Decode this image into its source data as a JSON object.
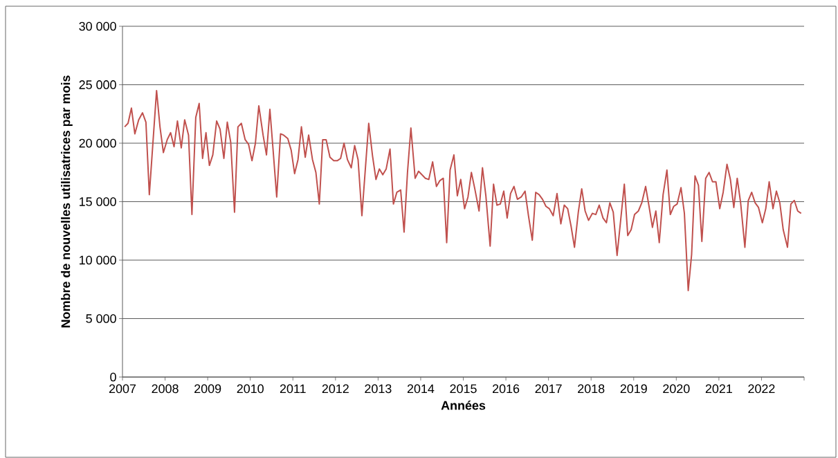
{
  "chart_data": {
    "type": "line",
    "xlabel": "Années",
    "ylabel": "Nombre de nouvelles utilisatrices par mois",
    "xlim": [
      2007,
      2023
    ],
    "ylim": [
      0,
      30000
    ],
    "xticks": [
      2007,
      2008,
      2009,
      2010,
      2011,
      2012,
      2013,
      2014,
      2015,
      2016,
      2017,
      2018,
      2019,
      2020,
      2021,
      2022,
      {
        "value": 2023,
        "label": null
      }
    ],
    "yticks": [
      {
        "value": 0,
        "label": "0"
      },
      {
        "value": 5000,
        "label": "5 000"
      },
      {
        "value": 10000,
        "label": "10 000"
      },
      {
        "value": 15000,
        "label": "15 000"
      },
      {
        "value": 20000,
        "label": "20 000"
      },
      {
        "value": 25000,
        "label": "25 000"
      },
      {
        "value": 30000,
        "label": "30 000"
      }
    ],
    "grid": "y",
    "legend": false,
    "marker": "none",
    "line_style": "solid",
    "series": [
      {
        "color": "#c0504d",
        "x": [
          2007.05,
          2007.13,
          2007.21,
          2007.29,
          2007.38,
          2007.47,
          2007.55,
          2007.63,
          2007.8,
          2007.88,
          2007.96,
          2008.05,
          2008.13,
          2008.21,
          2008.29,
          2008.38,
          2008.46,
          2008.55,
          2008.63,
          2008.72,
          2008.8,
          2008.88,
          2008.96,
          2009.04,
          2009.12,
          2009.21,
          2009.29,
          2009.38,
          2009.46,
          2009.54,
          2009.63,
          2009.71,
          2009.79,
          2009.88,
          2009.96,
          2010.04,
          2010.12,
          2010.2,
          2010.3,
          2010.38,
          2010.46,
          2010.54,
          2010.62,
          2010.71,
          2010.78,
          2010.88,
          2010.96,
          2011.04,
          2011.12,
          2011.2,
          2011.29,
          2011.37,
          2011.46,
          2011.54,
          2011.62,
          2011.7,
          2011.78,
          2011.87,
          2011.96,
          2012.04,
          2012.12,
          2012.2,
          2012.28,
          2012.37,
          2012.45,
          2012.53,
          2012.62,
          2012.78,
          2012.87,
          2012.95,
          2013.03,
          2013.11,
          2013.19,
          2013.28,
          2013.36,
          2013.44,
          2013.53,
          2013.61,
          2013.69,
          2013.77,
          2013.87,
          2013.95,
          2014.03,
          2014.11,
          2014.19,
          2014.28,
          2014.37,
          2014.45,
          2014.53,
          2014.61,
          2014.69,
          2014.78,
          2014.86,
          2014.94,
          2015.03,
          2015.11,
          2015.19,
          2015.27,
          2015.37,
          2015.45,
          2015.53,
          2015.63,
          2015.71,
          2015.79,
          2015.87,
          2015.95,
          2016.03,
          2016.11,
          2016.19,
          2016.27,
          2016.36,
          2016.45,
          2016.53,
          2016.62,
          2016.7,
          2016.78,
          2016.86,
          2016.94,
          2017.02,
          2017.11,
          2017.2,
          2017.29,
          2017.37,
          2017.45,
          2017.53,
          2017.61,
          2017.7,
          2017.78,
          2017.86,
          2017.94,
          2018.03,
          2018.11,
          2018.19,
          2018.28,
          2018.36,
          2018.44,
          2018.52,
          2018.61,
          2018.78,
          2018.86,
          2018.94,
          2019.02,
          2019.11,
          2019.19,
          2019.28,
          2019.36,
          2019.44,
          2019.52,
          2019.6,
          2019.69,
          2019.78,
          2019.86,
          2019.94,
          2020.02,
          2020.11,
          2020.19,
          2020.28,
          2020.36,
          2020.44,
          2020.52,
          2020.6,
          2020.69,
          2020.77,
          2020.85,
          2020.93,
          2021.02,
          2021.1,
          2021.19,
          2021.27,
          2021.35,
          2021.43,
          2021.51,
          2021.61,
          2021.69,
          2021.77,
          2021.85,
          2021.93,
          2022.02,
          2022.1,
          2022.18,
          2022.27,
          2022.35,
          2022.43,
          2022.51,
          2022.61,
          2022.69,
          2022.77,
          2022.85,
          2022.93
        ],
        "values": [
          21400,
          21700,
          23000,
          20800,
          22000,
          22600,
          21800,
          15600,
          24500,
          21400,
          19200,
          20300,
          20900,
          19700,
          21900,
          19600,
          22000,
          20700,
          13900,
          22200,
          23400,
          18700,
          20900,
          18100,
          19000,
          21900,
          21200,
          18700,
          21800,
          20100,
          14100,
          21400,
          21700,
          20300,
          19900,
          18500,
          20000,
          23200,
          20700,
          19000,
          22900,
          19200,
          15400,
          20800,
          20700,
          20400,
          19400,
          17400,
          18600,
          21400,
          18800,
          20700,
          18600,
          17500,
          14800,
          20300,
          20300,
          18800,
          18500,
          18500,
          18700,
          20000,
          18600,
          17900,
          19800,
          18600,
          13800,
          21700,
          18900,
          16900,
          17800,
          17300,
          17800,
          19500,
          14800,
          15800,
          16000,
          12400,
          17500,
          21300,
          17000,
          17600,
          17300,
          17000,
          16900,
          18400,
          16300,
          16800,
          17000,
          11500,
          17700,
          19000,
          15500,
          16900,
          14400,
          15400,
          17500,
          16100,
          14200,
          17900,
          15500,
          11200,
          16500,
          14700,
          14800,
          15900,
          13600,
          15700,
          16300,
          15200,
          15400,
          15900,
          13800,
          11700,
          15800,
          15600,
          15200,
          14600,
          14400,
          13800,
          15700,
          13100,
          14700,
          14400,
          12900,
          11100,
          14100,
          16100,
          14200,
          13400,
          14000,
          13900,
          14700,
          13600,
          13200,
          14900,
          14100,
          10400,
          16500,
          12100,
          12600,
          13900,
          14200,
          14900,
          16300,
          14600,
          12800,
          14200,
          11500,
          15600,
          17700,
          13900,
          14600,
          14800,
          16200,
          14000,
          7400,
          10500,
          17200,
          16400,
          11600,
          17000,
          17500,
          16700,
          16700,
          14400,
          15800,
          18200,
          16900,
          14500,
          17000,
          14900,
          11100,
          15100,
          15800,
          14900,
          14500,
          13200,
          14400,
          16700,
          14400,
          15900,
          14900,
          12600,
          11100,
          14800,
          15100,
          14200,
          14000
        ]
      }
    ]
  }
}
